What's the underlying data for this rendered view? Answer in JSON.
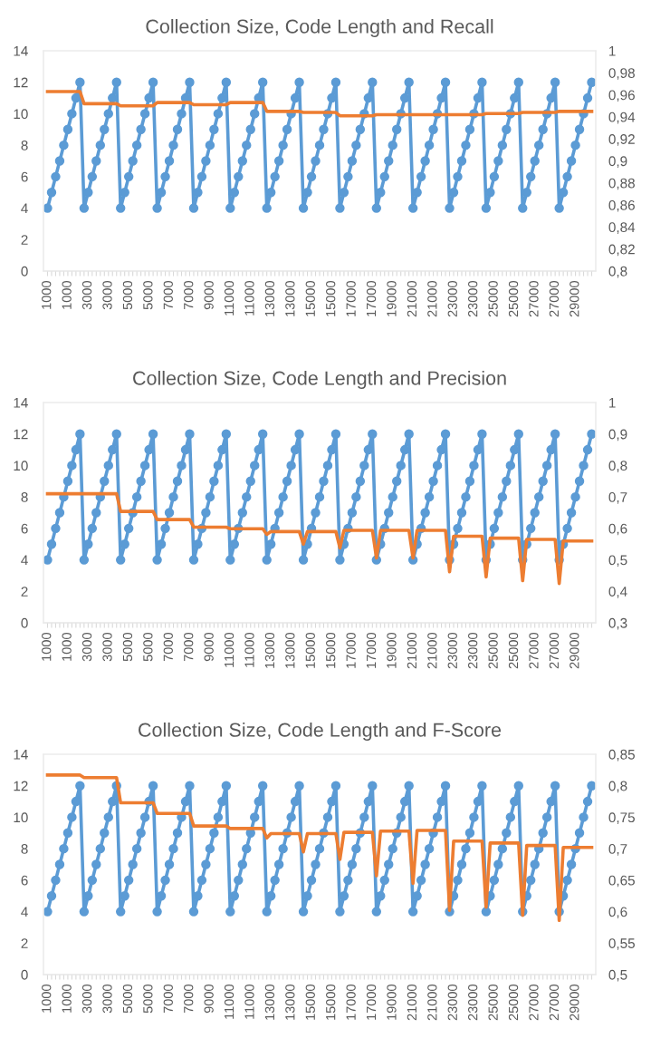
{
  "chart_data": [
    {
      "type": "line",
      "title": "Collection Size, Code Length and Recall",
      "categories": [
        "1000",
        null,
        null,
        null,
        null,
        "1000",
        null,
        null,
        null,
        null,
        "3000",
        null,
        null,
        null,
        null,
        "3000",
        null,
        null,
        null,
        null,
        "5000",
        null,
        null,
        null,
        null,
        "5000",
        null,
        null,
        null,
        null,
        "7000",
        null,
        null,
        null,
        null,
        "7000",
        null,
        null,
        null,
        null,
        "9000",
        null,
        null,
        null,
        null,
        "11000",
        null,
        null,
        null,
        null,
        "11000",
        null,
        null,
        null,
        null,
        "13000",
        null,
        null,
        null,
        null,
        "13000",
        null,
        null,
        null,
        null,
        "15000",
        null,
        null,
        null,
        null,
        "15000",
        null,
        null,
        null,
        null,
        "17000",
        null,
        null,
        null,
        null,
        "17000",
        null,
        null,
        null,
        null,
        "19000",
        null,
        null,
        null,
        null,
        "21000",
        null,
        null,
        null,
        null,
        "21000",
        null,
        null,
        null,
        null,
        "23000",
        null,
        null,
        null,
        null,
        "23000",
        null,
        null,
        null,
        null,
        "25000",
        null,
        null,
        null,
        null,
        "25000",
        null,
        null,
        null,
        null,
        "27000",
        null,
        null,
        null,
        null,
        "27000",
        null,
        null,
        null,
        null,
        "29000",
        null,
        null,
        null,
        null
      ],
      "series": [
        {
          "color": "#5b9bd5",
          "marker": "circle",
          "values": [
            4,
            5,
            6,
            7,
            8,
            9,
            10,
            11,
            12,
            4,
            5,
            6,
            7,
            8,
            9,
            10,
            11,
            12,
            4,
            5,
            6,
            7,
            8,
            9,
            10,
            11,
            12,
            4,
            5,
            6,
            7,
            8,
            9,
            10,
            11,
            12,
            4,
            5,
            6,
            7,
            8,
            9,
            10,
            11,
            12,
            4,
            5,
            6,
            7,
            8,
            9,
            10,
            11,
            12,
            4,
            5,
            6,
            7,
            8,
            9,
            10,
            11,
            12,
            4,
            5,
            6,
            7,
            8,
            9,
            10,
            11,
            12,
            4,
            5,
            6,
            7,
            8,
            9,
            10,
            11,
            12,
            4,
            5,
            6,
            7,
            8,
            9,
            10,
            11,
            12,
            4,
            5,
            6,
            7,
            8,
            9,
            10,
            11,
            12,
            4,
            5,
            6,
            7,
            8,
            9,
            10,
            11,
            12,
            4,
            5,
            6,
            7,
            8,
            9,
            10,
            11,
            12,
            4,
            5,
            6,
            7,
            8,
            9,
            10,
            11,
            12,
            4,
            5,
            6,
            7,
            8,
            9,
            10,
            11,
            12
          ]
        },
        {
          "color": "#ed7d31",
          "axis": "y2",
          "values": [
            0.963,
            0.963,
            0.963,
            0.963,
            0.963,
            0.963,
            0.963,
            0.963,
            0.963,
            0.952,
            0.952,
            0.952,
            0.952,
            0.952,
            0.952,
            0.952,
            0.952,
            0.952,
            0.95,
            0.95,
            0.95,
            0.95,
            0.95,
            0.95,
            0.95,
            0.95,
            0.95,
            0.953,
            0.953,
            0.953,
            0.953,
            0.953,
            0.953,
            0.953,
            0.953,
            0.953,
            0.951,
            0.951,
            0.951,
            0.951,
            0.951,
            0.951,
            0.951,
            0.951,
            0.951,
            0.953,
            0.953,
            0.953,
            0.953,
            0.953,
            0.953,
            0.953,
            0.953,
            0.953,
            0.945,
            0.945,
            0.945,
            0.945,
            0.945,
            0.945,
            0.945,
            0.945,
            0.945,
            0.944,
            0.944,
            0.944,
            0.944,
            0.944,
            0.944,
            0.944,
            0.944,
            0.944,
            0.941,
            0.941,
            0.941,
            0.941,
            0.941,
            0.941,
            0.941,
            0.941,
            0.941,
            0.942,
            0.942,
            0.942,
            0.942,
            0.942,
            0.942,
            0.942,
            0.942,
            0.942,
            0.942,
            0.942,
            0.942,
            0.942,
            0.942,
            0.942,
            0.942,
            0.942,
            0.942,
            0.942,
            0.942,
            0.942,
            0.942,
            0.942,
            0.942,
            0.942,
            0.942,
            0.942,
            0.943,
            0.943,
            0.943,
            0.943,
            0.943,
            0.943,
            0.943,
            0.943,
            0.943,
            0.944,
            0.944,
            0.944,
            0.944,
            0.944,
            0.944,
            0.944,
            0.944,
            0.944,
            0.945,
            0.945,
            0.945,
            0.945,
            0.945,
            0.945,
            0.945,
            0.945,
            0.945
          ]
        }
      ],
      "ylim": [
        0,
        14
      ],
      "yticks": [
        0,
        2,
        4,
        6,
        8,
        10,
        12,
        14
      ],
      "y2lim": [
        0.8,
        1
      ],
      "y2ticks": [
        {
          "value": 0.8,
          "label": "0,8"
        },
        {
          "value": 0.82,
          "label": "0,82"
        },
        {
          "value": 0.84,
          "label": "0,84"
        },
        {
          "value": 0.86,
          "label": "0,86"
        },
        {
          "value": 0.88,
          "label": "0,88"
        },
        {
          "value": 0.9,
          "label": "0,9"
        },
        {
          "value": 0.92,
          "label": "0,92"
        },
        {
          "value": 0.94,
          "label": "0,94"
        },
        {
          "value": 0.96,
          "label": "0,96"
        },
        {
          "value": 0.98,
          "label": "0,98"
        },
        {
          "value": 1,
          "label": "1"
        }
      ]
    },
    {
      "type": "line",
      "title": "Collection Size, Code Length and Precision",
      "categories": [
        "1000",
        null,
        null,
        null,
        null,
        "1000",
        null,
        null,
        null,
        null,
        "3000",
        null,
        null,
        null,
        null,
        "3000",
        null,
        null,
        null,
        null,
        "5000",
        null,
        null,
        null,
        null,
        "5000",
        null,
        null,
        null,
        null,
        "7000",
        null,
        null,
        null,
        null,
        "7000",
        null,
        null,
        null,
        null,
        "9000",
        null,
        null,
        null,
        null,
        "11000",
        null,
        null,
        null,
        null,
        "11000",
        null,
        null,
        null,
        null,
        "13000",
        null,
        null,
        null,
        null,
        "13000",
        null,
        null,
        null,
        null,
        "15000",
        null,
        null,
        null,
        null,
        "15000",
        null,
        null,
        null,
        null,
        "17000",
        null,
        null,
        null,
        null,
        "17000",
        null,
        null,
        null,
        null,
        "19000",
        null,
        null,
        null,
        null,
        "21000",
        null,
        null,
        null,
        null,
        "21000",
        null,
        null,
        null,
        null,
        "23000",
        null,
        null,
        null,
        null,
        "23000",
        null,
        null,
        null,
        null,
        "25000",
        null,
        null,
        null,
        null,
        "25000",
        null,
        null,
        null,
        null,
        "27000",
        null,
        null,
        null,
        null,
        "27000",
        null,
        null,
        null,
        null,
        "29000",
        null,
        null,
        null,
        null
      ],
      "series": [
        {
          "color": "#5b9bd5",
          "marker": "circle",
          "values": [
            4,
            5,
            6,
            7,
            8,
            9,
            10,
            11,
            12,
            4,
            5,
            6,
            7,
            8,
            9,
            10,
            11,
            12,
            4,
            5,
            6,
            7,
            8,
            9,
            10,
            11,
            12,
            4,
            5,
            6,
            7,
            8,
            9,
            10,
            11,
            12,
            4,
            5,
            6,
            7,
            8,
            9,
            10,
            11,
            12,
            4,
            5,
            6,
            7,
            8,
            9,
            10,
            11,
            12,
            4,
            5,
            6,
            7,
            8,
            9,
            10,
            11,
            12,
            4,
            5,
            6,
            7,
            8,
            9,
            10,
            11,
            12,
            4,
            5,
            6,
            7,
            8,
            9,
            10,
            11,
            12,
            4,
            5,
            6,
            7,
            8,
            9,
            10,
            11,
            12,
            4,
            5,
            6,
            7,
            8,
            9,
            10,
            11,
            12,
            4,
            5,
            6,
            7,
            8,
            9,
            10,
            11,
            12,
            4,
            5,
            6,
            7,
            8,
            9,
            10,
            11,
            12,
            4,
            5,
            6,
            7,
            8,
            9,
            10,
            11,
            12,
            4,
            5,
            6,
            7,
            8,
            9,
            10,
            11,
            12
          ]
        },
        {
          "color": "#ed7d31",
          "axis": "y2",
          "values": [
            0.71,
            0.71,
            0.71,
            0.71,
            0.71,
            0.71,
            0.71,
            0.71,
            0.71,
            0.71,
            0.71,
            0.71,
            0.71,
            0.71,
            0.71,
            0.71,
            0.71,
            0.71,
            0.654,
            0.654,
            0.654,
            0.654,
            0.654,
            0.654,
            0.654,
            0.654,
            0.654,
            0.628,
            0.628,
            0.628,
            0.628,
            0.628,
            0.628,
            0.628,
            0.628,
            0.628,
            0.604,
            0.604,
            0.604,
            0.604,
            0.604,
            0.604,
            0.604,
            0.604,
            0.604,
            0.599,
            0.599,
            0.599,
            0.599,
            0.599,
            0.599,
            0.599,
            0.599,
            0.599,
            0.581,
            0.59,
            0.59,
            0.59,
            0.59,
            0.59,
            0.59,
            0.59,
            0.59,
            0.55,
            0.59,
            0.59,
            0.59,
            0.59,
            0.59,
            0.59,
            0.59,
            0.59,
            0.538,
            0.594,
            0.594,
            0.594,
            0.594,
            0.594,
            0.594,
            0.594,
            0.594,
            0.506,
            0.594,
            0.594,
            0.594,
            0.594,
            0.594,
            0.594,
            0.594,
            0.594,
            0.506,
            0.594,
            0.594,
            0.594,
            0.594,
            0.594,
            0.594,
            0.594,
            0.594,
            0.462,
            0.575,
            0.575,
            0.575,
            0.575,
            0.575,
            0.575,
            0.575,
            0.575,
            0.446,
            0.569,
            0.569,
            0.569,
            0.569,
            0.569,
            0.569,
            0.569,
            0.569,
            0.434,
            0.565,
            0.565,
            0.565,
            0.565,
            0.565,
            0.565,
            0.565,
            0.565,
            0.425,
            0.56,
            0.56,
            0.56,
            0.56,
            0.56,
            0.56,
            0.56,
            0.56
          ]
        }
      ],
      "ylim": [
        0,
        14
      ],
      "yticks": [
        0,
        2,
        4,
        6,
        8,
        10,
        12,
        14
      ],
      "y2lim": [
        0.3,
        1
      ],
      "y2ticks": [
        {
          "value": 0.3,
          "label": "0,3"
        },
        {
          "value": 0.4,
          "label": "0,4"
        },
        {
          "value": 0.5,
          "label": "0,5"
        },
        {
          "value": 0.6,
          "label": "0,6"
        },
        {
          "value": 0.7,
          "label": "0,7"
        },
        {
          "value": 0.8,
          "label": "0,8"
        },
        {
          "value": 0.9,
          "label": "0,9"
        },
        {
          "value": 1,
          "label": "1"
        }
      ]
    },
    {
      "type": "line",
      "title": "Collection Size, Code Length and F-Score",
      "categories": [
        "1000",
        null,
        null,
        null,
        null,
        "1000",
        null,
        null,
        null,
        null,
        "3000",
        null,
        null,
        null,
        null,
        "3000",
        null,
        null,
        null,
        null,
        "5000",
        null,
        null,
        null,
        null,
        "5000",
        null,
        null,
        null,
        null,
        "7000",
        null,
        null,
        null,
        null,
        "7000",
        null,
        null,
        null,
        null,
        "9000",
        null,
        null,
        null,
        null,
        "11000",
        null,
        null,
        null,
        null,
        "11000",
        null,
        null,
        null,
        null,
        "13000",
        null,
        null,
        null,
        null,
        "13000",
        null,
        null,
        null,
        null,
        "15000",
        null,
        null,
        null,
        null,
        "15000",
        null,
        null,
        null,
        null,
        "17000",
        null,
        null,
        null,
        null,
        "17000",
        null,
        null,
        null,
        null,
        "19000",
        null,
        null,
        null,
        null,
        "21000",
        null,
        null,
        null,
        null,
        "21000",
        null,
        null,
        null,
        null,
        "23000",
        null,
        null,
        null,
        null,
        "23000",
        null,
        null,
        null,
        null,
        "25000",
        null,
        null,
        null,
        null,
        "25000",
        null,
        null,
        null,
        null,
        "27000",
        null,
        null,
        null,
        null,
        "27000",
        null,
        null,
        null,
        null,
        "29000",
        null,
        null,
        null,
        null
      ],
      "series": [
        {
          "color": "#5b9bd5",
          "marker": "circle",
          "values": [
            4,
            5,
            6,
            7,
            8,
            9,
            10,
            11,
            12,
            4,
            5,
            6,
            7,
            8,
            9,
            10,
            11,
            12,
            4,
            5,
            6,
            7,
            8,
            9,
            10,
            11,
            12,
            4,
            5,
            6,
            7,
            8,
            9,
            10,
            11,
            12,
            4,
            5,
            6,
            7,
            8,
            9,
            10,
            11,
            12,
            4,
            5,
            6,
            7,
            8,
            9,
            10,
            11,
            12,
            4,
            5,
            6,
            7,
            8,
            9,
            10,
            11,
            12,
            4,
            5,
            6,
            7,
            8,
            9,
            10,
            11,
            12,
            4,
            5,
            6,
            7,
            8,
            9,
            10,
            11,
            12,
            4,
            5,
            6,
            7,
            8,
            9,
            10,
            11,
            12,
            4,
            5,
            6,
            7,
            8,
            9,
            10,
            11,
            12,
            4,
            5,
            6,
            7,
            8,
            9,
            10,
            11,
            12,
            4,
            5,
            6,
            7,
            8,
            9,
            10,
            11,
            12,
            4,
            5,
            6,
            7,
            8,
            9,
            10,
            11,
            12,
            4,
            5,
            6,
            7,
            8,
            9,
            10,
            11,
            12
          ]
        },
        {
          "color": "#ed7d31",
          "axis": "y2",
          "values": [
            0.817,
            0.817,
            0.817,
            0.817,
            0.817,
            0.817,
            0.817,
            0.817,
            0.817,
            0.813,
            0.813,
            0.813,
            0.813,
            0.813,
            0.813,
            0.813,
            0.813,
            0.813,
            0.773,
            0.773,
            0.773,
            0.773,
            0.773,
            0.773,
            0.773,
            0.773,
            0.773,
            0.756,
            0.756,
            0.756,
            0.756,
            0.756,
            0.756,
            0.756,
            0.756,
            0.756,
            0.736,
            0.736,
            0.736,
            0.736,
            0.736,
            0.736,
            0.736,
            0.736,
            0.736,
            0.732,
            0.732,
            0.732,
            0.732,
            0.732,
            0.732,
            0.732,
            0.732,
            0.732,
            0.717,
            0.724,
            0.724,
            0.724,
            0.724,
            0.724,
            0.724,
            0.724,
            0.724,
            0.695,
            0.724,
            0.724,
            0.724,
            0.724,
            0.724,
            0.724,
            0.724,
            0.724,
            0.683,
            0.726,
            0.726,
            0.726,
            0.726,
            0.726,
            0.726,
            0.726,
            0.726,
            0.657,
            0.728,
            0.728,
            0.728,
            0.728,
            0.728,
            0.728,
            0.728,
            0.728,
            0.645,
            0.729,
            0.729,
            0.729,
            0.729,
            0.729,
            0.729,
            0.729,
            0.729,
            0.602,
            0.712,
            0.712,
            0.712,
            0.712,
            0.712,
            0.712,
            0.712,
            0.712,
            0.607,
            0.709,
            0.709,
            0.709,
            0.709,
            0.709,
            0.709,
            0.709,
            0.709,
            0.594,
            0.705,
            0.705,
            0.705,
            0.705,
            0.705,
            0.705,
            0.705,
            0.705,
            0.586,
            0.702,
            0.702,
            0.702,
            0.702,
            0.702,
            0.702,
            0.702,
            0.702
          ]
        }
      ],
      "ylim": [
        0,
        14
      ],
      "yticks": [
        0,
        2,
        4,
        6,
        8,
        10,
        12,
        14
      ],
      "y2lim": [
        0.5,
        0.85
      ],
      "y2ticks": [
        {
          "value": 0.5,
          "label": "0,5"
        },
        {
          "value": 0.55,
          "label": "0,55"
        },
        {
          "value": 0.6,
          "label": "0,6"
        },
        {
          "value": 0.65,
          "label": "0,65"
        },
        {
          "value": 0.7,
          "label": "0,7"
        },
        {
          "value": 0.75,
          "label": "0,75"
        },
        {
          "value": 0.8,
          "label": "0,8"
        },
        {
          "value": 0.85,
          "label": "0,85"
        }
      ]
    }
  ]
}
